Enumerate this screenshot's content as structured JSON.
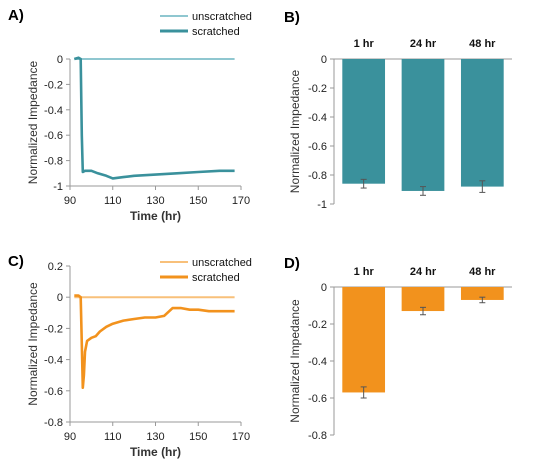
{
  "colors": {
    "teal": "#3a919c",
    "teal_light": "#8fc7d0",
    "orange": "#f2921d",
    "orange_light": "#f8c07a",
    "axis": "#999999",
    "errorbar": "#555555"
  },
  "chart_data": [
    {
      "panel": "A)",
      "type": "line",
      "xlabel": "Time (hr)",
      "ylabel": "Normalized Impedance",
      "xlim": [
        90,
        170
      ],
      "ylim": [
        -1,
        0
      ],
      "xticks": [
        "90",
        "110",
        "130",
        "150",
        "170"
      ],
      "yticks": [
        "0",
        "-0.2",
        "-0.4",
        "-0.6",
        "-0.8",
        "-1"
      ],
      "legend_position": "top-right",
      "series": [
        {
          "name": "unscratched",
          "color": "#8fc7d0",
          "points": [
            [
              92,
              0
            ],
            [
              95,
              0
            ],
            [
              100,
              0
            ],
            [
              110,
              0
            ],
            [
              120,
              0
            ],
            [
              130,
              0
            ],
            [
              140,
              0
            ],
            [
              150,
              0
            ],
            [
              160,
              0
            ],
            [
              167,
              0
            ]
          ]
        },
        {
          "name": "scratched",
          "color": "#3a919c",
          "points": [
            [
              92,
              0.0
            ],
            [
              94,
              0.01
            ],
            [
              95,
              0.0
            ],
            [
              95.5,
              -0.6
            ],
            [
              96,
              -0.89
            ],
            [
              97,
              -0.88
            ],
            [
              100,
              -0.88
            ],
            [
              103,
              -0.9
            ],
            [
              107,
              -0.92
            ],
            [
              110,
              -0.94
            ],
            [
              115,
              -0.93
            ],
            [
              120,
              -0.92
            ],
            [
              130,
              -0.91
            ],
            [
              140,
              -0.9
            ],
            [
              150,
              -0.89
            ],
            [
              160,
              -0.88
            ],
            [
              167,
              -0.88
            ]
          ]
        }
      ]
    },
    {
      "panel": "B)",
      "type": "bar",
      "ylabel": "Normalized Impedance",
      "categories": [
        "1 hr",
        "24 hr",
        "48 hr"
      ],
      "ylim": [
        -1,
        0
      ],
      "yticks": [
        "0",
        "-0.2",
        "-0.4",
        "-0.6",
        "-0.8",
        "-1"
      ],
      "series": [
        {
          "color": "#3a919c",
          "values": [
            -0.86,
            -0.91,
            -0.88
          ],
          "errors": [
            0.03,
            0.03,
            0.04
          ]
        }
      ]
    },
    {
      "panel": "C)",
      "type": "line",
      "xlabel": "Time (hr)",
      "ylabel": "Normalized Impedance",
      "xlim": [
        90,
        170
      ],
      "ylim": [
        -0.8,
        0.2
      ],
      "xticks": [
        "90",
        "110",
        "130",
        "150",
        "170"
      ],
      "yticks": [
        "0.2",
        "0",
        "-0.2",
        "-0.4",
        "-0.6",
        "-0.8"
      ],
      "legend_position": "top-right",
      "series": [
        {
          "name": "unscratched",
          "color": "#f8c07a",
          "points": [
            [
              92,
              0
            ],
            [
              95,
              0
            ],
            [
              100,
              0
            ],
            [
              110,
              0
            ],
            [
              120,
              0
            ],
            [
              130,
              0
            ],
            [
              140,
              0
            ],
            [
              150,
              0
            ],
            [
              160,
              0
            ],
            [
              167,
              0
            ]
          ]
        },
        {
          "name": "scratched",
          "color": "#f2921d",
          "points": [
            [
              92,
              0.01
            ],
            [
              94,
              0.01
            ],
            [
              95,
              0.0
            ],
            [
              95.5,
              -0.3
            ],
            [
              96,
              -0.58
            ],
            [
              96.5,
              -0.5
            ],
            [
              97,
              -0.35
            ],
            [
              98,
              -0.28
            ],
            [
              100,
              -0.26
            ],
            [
              102,
              -0.25
            ],
            [
              104,
              -0.22
            ],
            [
              107,
              -0.19
            ],
            [
              110,
              -0.17
            ],
            [
              115,
              -0.15
            ],
            [
              120,
              -0.14
            ],
            [
              125,
              -0.13
            ],
            [
              130,
              -0.13
            ],
            [
              134,
              -0.12
            ],
            [
              138,
              -0.07
            ],
            [
              142,
              -0.07
            ],
            [
              146,
              -0.08
            ],
            [
              150,
              -0.08
            ],
            [
              155,
              -0.09
            ],
            [
              160,
              -0.09
            ],
            [
              167,
              -0.09
            ]
          ]
        }
      ]
    },
    {
      "panel": "D)",
      "type": "bar",
      "ylabel": "Normalized Impedance",
      "categories": [
        "1 hr",
        "24 hr",
        "48 hr"
      ],
      "ylim": [
        -0.8,
        0
      ],
      "yticks": [
        "0",
        "-0.2",
        "-0.4",
        "-0.6",
        "-0.8"
      ],
      "series": [
        {
          "color": "#f2921d",
          "values": [
            -0.57,
            -0.13,
            -0.07
          ],
          "errors": [
            0.03,
            0.02,
            0.015
          ]
        }
      ]
    }
  ]
}
